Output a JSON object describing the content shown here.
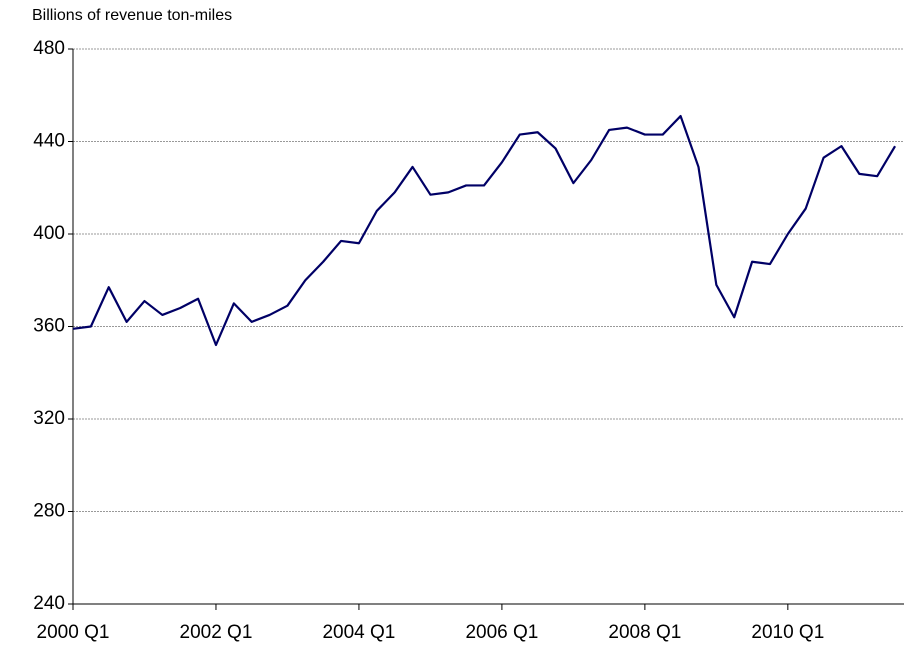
{
  "chart_data": {
    "type": "line",
    "y_label": "Billions of revenue ton-miles",
    "categories": [
      "2000 Q1",
      null,
      null,
      null,
      null,
      null,
      null,
      null,
      "2002 Q1",
      null,
      null,
      null,
      null,
      null,
      null,
      null,
      "2004 Q1",
      null,
      null,
      null,
      null,
      null,
      null,
      null,
      "2006 Q1",
      null,
      null,
      null,
      null,
      null,
      null,
      null,
      "2008 Q1",
      null,
      null,
      null,
      null,
      null,
      null,
      null,
      "2010 Q1",
      null,
      null,
      null,
      null,
      null,
      null
    ],
    "series": [
      {
        "name": "Revenue ton-miles",
        "color": "#000066",
        "values": [
          359,
          360,
          377,
          362,
          371,
          365,
          368,
          372,
          352,
          370,
          362,
          365,
          369,
          380,
          388,
          397,
          396,
          410,
          418,
          429,
          417,
          418,
          421,
          421,
          431,
          443,
          444,
          437,
          422,
          432,
          445,
          446,
          443,
          443,
          451,
          429,
          378,
          364,
          388,
          387,
          400,
          411,
          433,
          438,
          426,
          425,
          438
        ]
      }
    ],
    "ylim": [
      240,
      480
    ],
    "yticks": [
      240,
      280,
      320,
      360,
      400,
      440,
      480
    ],
    "grid": true
  }
}
